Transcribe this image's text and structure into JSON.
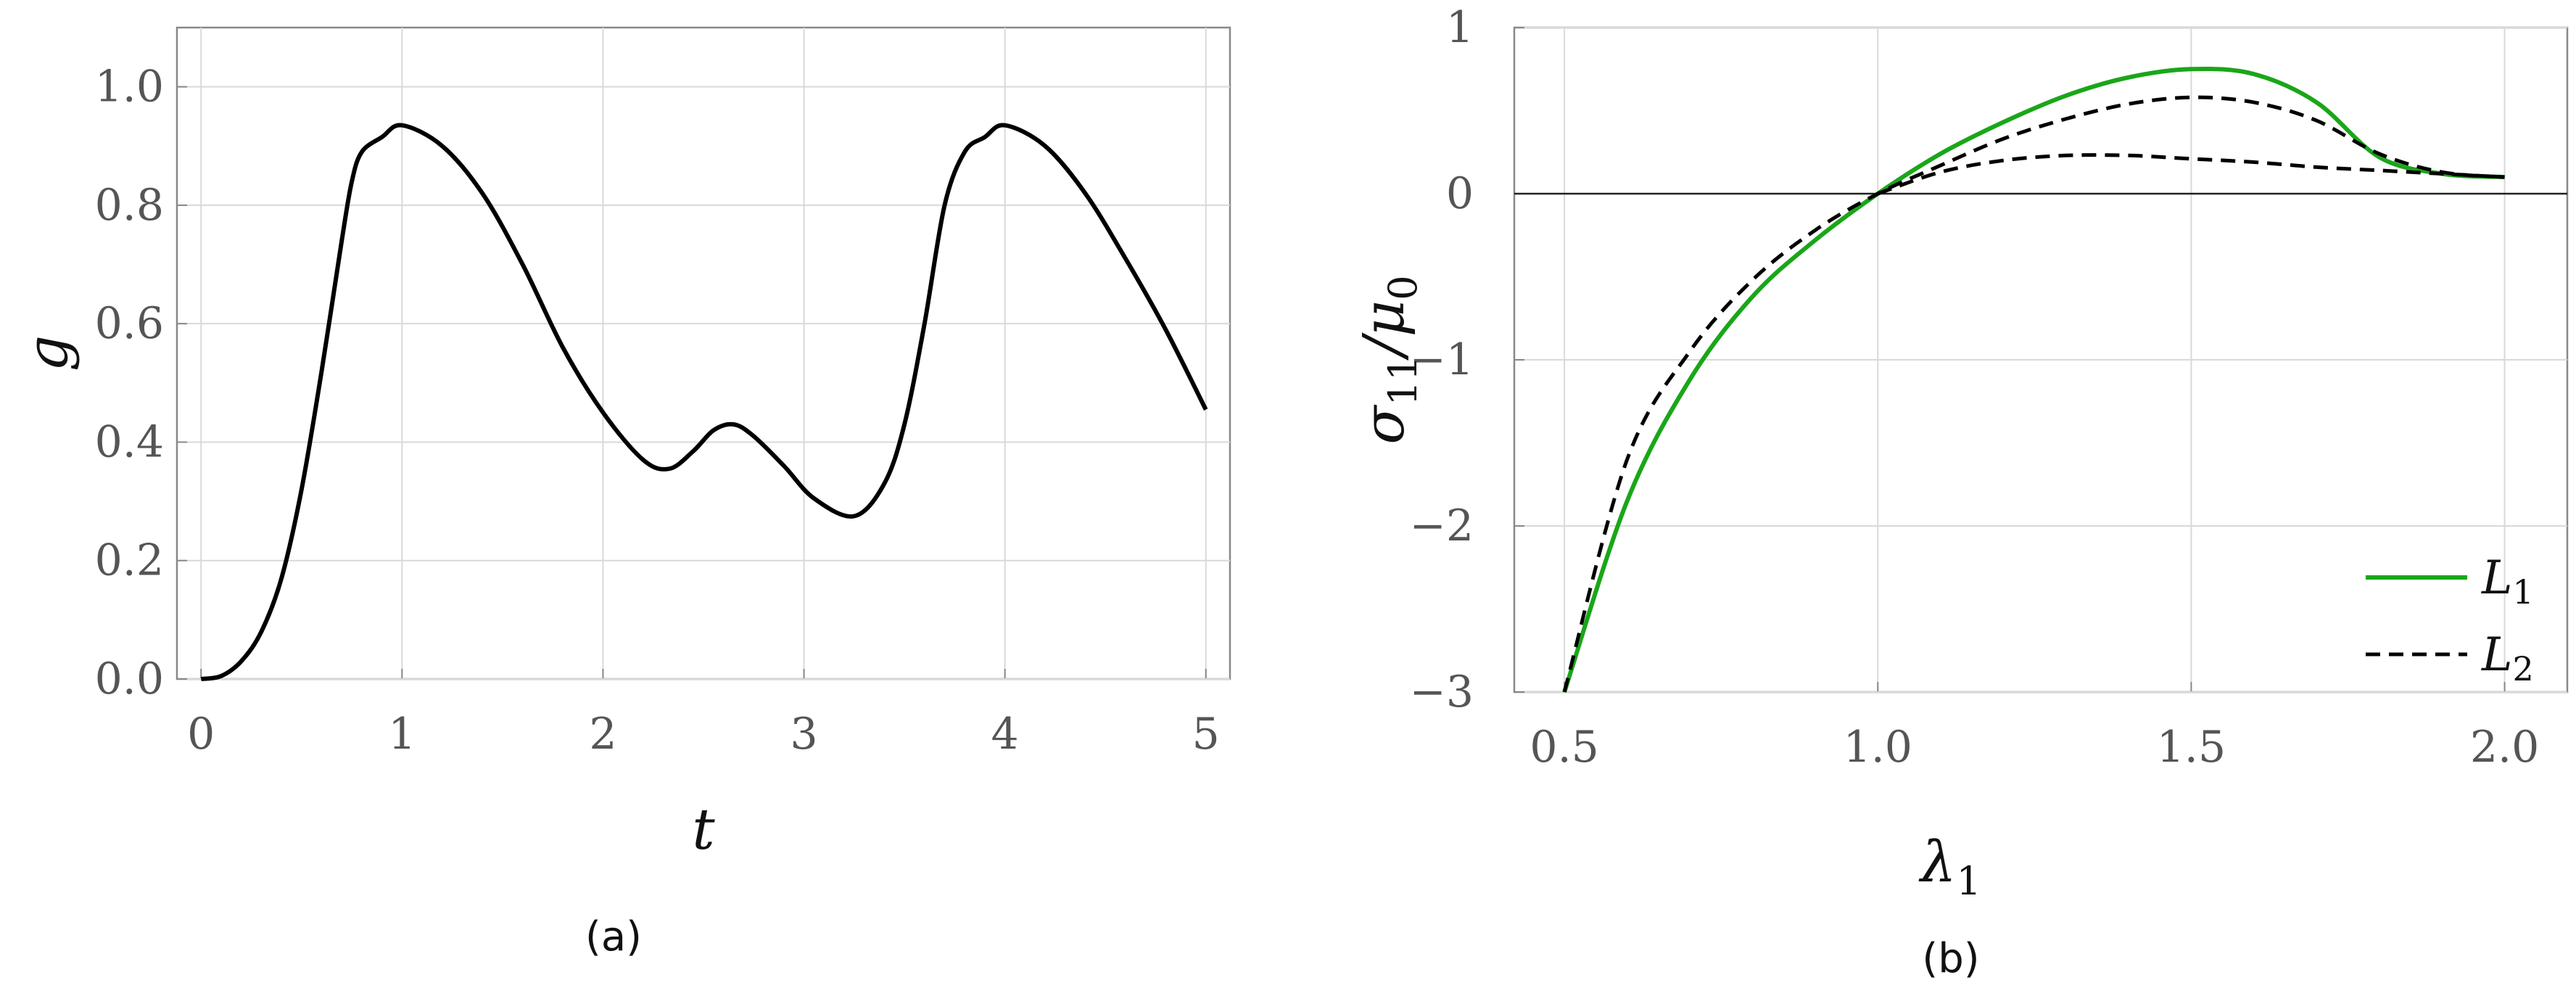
{
  "chart_data": [
    {
      "type": "line",
      "caption": "(a)",
      "xlabel": "t",
      "ylabel": "g",
      "xlim": [
        -0.12,
        5.12
      ],
      "ylim": [
        0.0,
        1.1
      ],
      "xticks": [
        0,
        1,
        2,
        3,
        4,
        5
      ],
      "xtick_labels": [
        "0",
        "1",
        "2",
        "3",
        "4",
        "5"
      ],
      "yticks": [
        0.0,
        0.2,
        0.4,
        0.6,
        0.8,
        1.0
      ],
      "ytick_labels": [
        "0.0",
        "0.2",
        "0.4",
        "0.6",
        "0.8",
        "1.0"
      ],
      "grid": true,
      "series": [
        {
          "color": "#000000",
          "style": "solid",
          "x": [
            0,
            0.1,
            0.2,
            0.3,
            0.4,
            0.5,
            0.6,
            0.7,
            0.75,
            0.8,
            0.9,
            1.0,
            1.2,
            1.4,
            1.6,
            1.8,
            2.0,
            2.2,
            2.33,
            2.45,
            2.55,
            2.65,
            2.75,
            2.9,
            3.05,
            3.25,
            3.4,
            3.5,
            3.6,
            3.7,
            3.8,
            3.9,
            4.0,
            4.2,
            4.4,
            4.6,
            4.8,
            5.0
          ],
          "y": [
            0.0,
            0.005,
            0.03,
            0.08,
            0.17,
            0.32,
            0.52,
            0.74,
            0.84,
            0.89,
            0.915,
            0.935,
            0.9,
            0.82,
            0.7,
            0.56,
            0.45,
            0.37,
            0.355,
            0.385,
            0.42,
            0.43,
            0.41,
            0.36,
            0.305,
            0.275,
            0.33,
            0.43,
            0.6,
            0.8,
            0.89,
            0.915,
            0.935,
            0.9,
            0.82,
            0.71,
            0.59,
            0.455
          ]
        }
      ]
    },
    {
      "type": "line",
      "caption": "(b)",
      "xlabel": "λ",
      "xlabel_sub": "1",
      "ylabel": "σ",
      "ylabel_sub": "11",
      "ylabel_rest": "/μ",
      "ylabel_rest_sub": "0",
      "xlim": [
        0.42,
        2.1
      ],
      "ylim": [
        -3.0,
        1.0
      ],
      "xticks": [
        0.5,
        1.0,
        1.5,
        2.0
      ],
      "xtick_labels": [
        "0.5",
        "1.0",
        "1.5",
        "2.0"
      ],
      "yticks": [
        -3,
        -2,
        -1,
        0,
        1
      ],
      "ytick_labels": [
        "−3",
        "−2",
        "−1",
        "0",
        "1"
      ],
      "grid": true,
      "legend": "bottom-right",
      "series": [
        {
          "name": "L",
          "name_sub": "1",
          "color": "#1aa619",
          "style": "solid",
          "x": [
            0.5,
            0.6,
            0.7,
            0.8,
            0.9,
            1.0,
            1.1,
            1.2,
            1.3,
            1.4,
            1.5,
            1.6,
            1.7,
            1.8,
            1.9,
            2.0
          ],
          "y": [
            -3.0,
            -1.85,
            -1.12,
            -0.62,
            -0.28,
            0.0,
            0.24,
            0.43,
            0.59,
            0.7,
            0.75,
            0.72,
            0.55,
            0.22,
            0.12,
            0.1
          ]
        },
        {
          "name": "L",
          "name_sub": "2",
          "color": "#000000",
          "style": "dashed",
          "x": [
            0.5,
            0.6,
            0.7,
            0.8,
            0.9,
            1.0,
            1.1,
            1.2,
            1.3,
            1.4,
            1.5,
            1.6,
            1.7,
            1.8,
            1.9,
            2.0
          ],
          "y": [
            -3.0,
            -1.6,
            -0.95,
            -0.52,
            -0.22,
            0.0,
            0.17,
            0.33,
            0.45,
            0.54,
            0.58,
            0.55,
            0.44,
            0.24,
            0.13,
            0.1
          ]
        },
        {
          "color": "#000000",
          "style": "dashed",
          "x": [
            1.0,
            1.1,
            1.2,
            1.3,
            1.4,
            1.5,
            1.6,
            1.7,
            1.8,
            1.9,
            2.0
          ],
          "y": [
            0.0,
            0.13,
            0.2,
            0.23,
            0.23,
            0.21,
            0.19,
            0.16,
            0.14,
            0.12,
            0.1
          ]
        }
      ]
    }
  ]
}
